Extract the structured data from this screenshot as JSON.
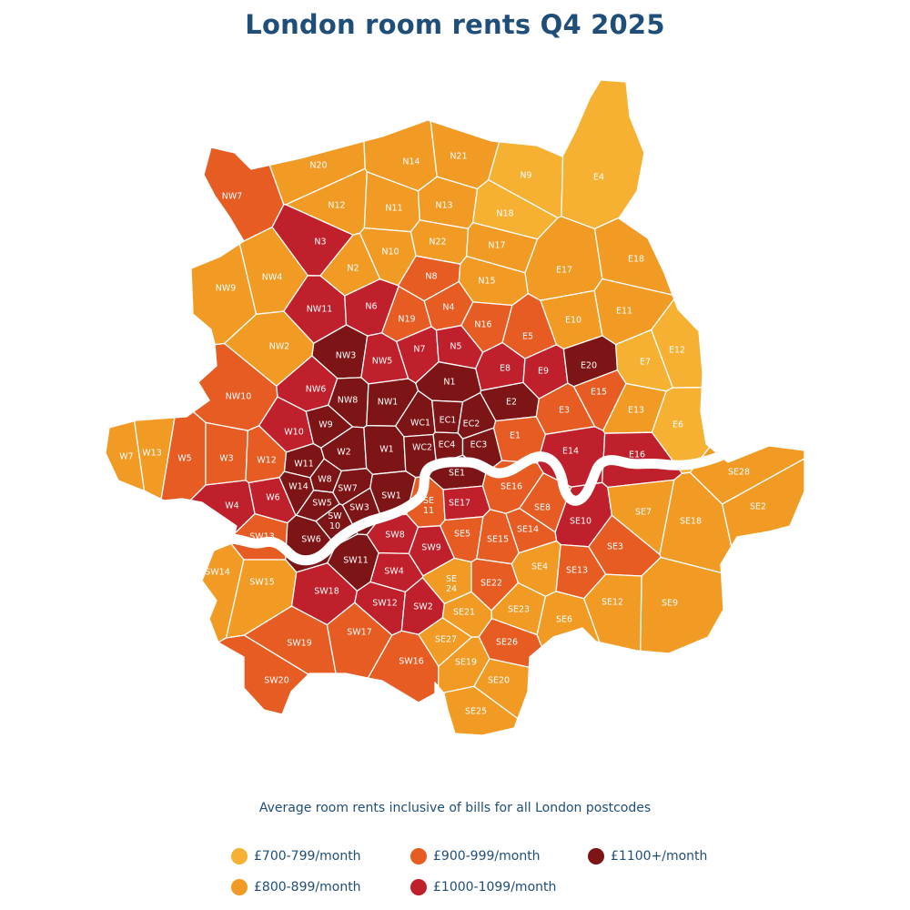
{
  "title": "London room rents Q4 2025",
  "subtitle": "Average room rents inclusive of bills for all London postcodes",
  "colors": {
    "b700": "#f6b032",
    "b800": "#f29b24",
    "b900": "#e65c23",
    "b1000": "#c0202b",
    "b1100": "#7d1416",
    "river": "#ffffff",
    "text": "#1f4e79"
  },
  "legend": [
    {
      "key": "b700",
      "label": "£700-799/month"
    },
    {
      "key": "b800",
      "label": "£800-899/month"
    },
    {
      "key": "b900",
      "label": "£900-999/month"
    },
    {
      "key": "b1000",
      "label": "£1000-1099/month"
    },
    {
      "key": "b1100",
      "label": "£1100+/month"
    }
  ],
  "postcodes": [
    {
      "code": "N20",
      "band": "b800"
    },
    {
      "code": "N14",
      "band": "b800"
    },
    {
      "code": "N21",
      "band": "b800"
    },
    {
      "code": "N9",
      "band": "b700"
    },
    {
      "code": "E4",
      "band": "b700"
    },
    {
      "code": "NW7",
      "band": "b900"
    },
    {
      "code": "N12",
      "band": "b800"
    },
    {
      "code": "N11",
      "band": "b800"
    },
    {
      "code": "N13",
      "band": "b800"
    },
    {
      "code": "N18",
      "band": "b700"
    },
    {
      "code": "N3",
      "band": "b1000"
    },
    {
      "code": "N10",
      "band": "b800"
    },
    {
      "code": "N22",
      "band": "b800"
    },
    {
      "code": "N17",
      "band": "b800"
    },
    {
      "code": "E17",
      "band": "b800"
    },
    {
      "code": "E18",
      "band": "b800"
    },
    {
      "code": "NW9",
      "band": "b800"
    },
    {
      "code": "NW4",
      "band": "b800"
    },
    {
      "code": "N2",
      "band": "b800"
    },
    {
      "code": "N8",
      "band": "b900"
    },
    {
      "code": "N15",
      "band": "b800"
    },
    {
      "code": "E11",
      "band": "b800"
    },
    {
      "code": "NW11",
      "band": "b1000"
    },
    {
      "code": "N6",
      "band": "b1000"
    },
    {
      "code": "N4",
      "band": "b900"
    },
    {
      "code": "N19",
      "band": "b900"
    },
    {
      "code": "N16",
      "band": "b900"
    },
    {
      "code": "E10",
      "band": "b800"
    },
    {
      "code": "E12",
      "band": "b700"
    },
    {
      "code": "NW3",
      "band": "b1100"
    },
    {
      "code": "N7",
      "band": "b1000"
    },
    {
      "code": "N5",
      "band": "b1000"
    },
    {
      "code": "E5",
      "band": "b900"
    },
    {
      "code": "E7",
      "band": "b700"
    },
    {
      "code": "NW2",
      "band": "b800"
    },
    {
      "code": "NW5",
      "band": "b1000"
    },
    {
      "code": "E8",
      "band": "b1000"
    },
    {
      "code": "E9",
      "band": "b1000"
    },
    {
      "code": "E20",
      "band": "b1100"
    },
    {
      "code": "NW6",
      "band": "b1000"
    },
    {
      "code": "NW8",
      "band": "b1100"
    },
    {
      "code": "NW1",
      "band": "b1100"
    },
    {
      "code": "N1",
      "band": "b1100"
    },
    {
      "code": "E2",
      "band": "b1100"
    },
    {
      "code": "E15",
      "band": "b900"
    },
    {
      "code": "NW10",
      "band": "b900"
    },
    {
      "code": "E3",
      "band": "b900"
    },
    {
      "code": "E13",
      "band": "b800"
    },
    {
      "code": "E6",
      "band": "b700"
    },
    {
      "code": "W9",
      "band": "b1100"
    },
    {
      "code": "WC1",
      "band": "b1100"
    },
    {
      "code": "EC1",
      "band": "b1100"
    },
    {
      "code": "EC2",
      "band": "b1100"
    },
    {
      "code": "W10",
      "band": "b1000"
    },
    {
      "code": "W7",
      "band": "b800"
    },
    {
      "code": "W13",
      "band": "b800"
    },
    {
      "code": "W5",
      "band": "b900"
    },
    {
      "code": "W3",
      "band": "b900"
    },
    {
      "code": "W12",
      "band": "b900"
    },
    {
      "code": "W2",
      "band": "b1100"
    },
    {
      "code": "W1",
      "band": "b1100"
    },
    {
      "code": "WC2",
      "band": "b1100"
    },
    {
      "code": "EC4",
      "band": "b1100"
    },
    {
      "code": "EC3",
      "band": "b1100"
    },
    {
      "code": "E1",
      "band": "b900"
    },
    {
      "code": "E14",
      "band": "b1000"
    },
    {
      "code": "E16",
      "band": "b1000"
    },
    {
      "code": "W11",
      "band": "b1100"
    },
    {
      "code": "W8",
      "band": "b1100"
    },
    {
      "code": "W14",
      "band": "b1100"
    },
    {
      "code": "SE1",
      "band": "b1100"
    },
    {
      "code": "SE28",
      "band": "b800"
    },
    {
      "code": "W4",
      "band": "b1000"
    },
    {
      "code": "W6",
      "band": "b1000"
    },
    {
      "code": "SW7",
      "band": "b1100"
    },
    {
      "code": "SW5",
      "band": "b1100"
    },
    {
      "code": "SW1",
      "band": "b1100"
    },
    {
      "code": "SE16",
      "band": "b900"
    },
    {
      "code": "SW3",
      "band": "b1100"
    },
    {
      "code": "SW10",
      "band": "b1100"
    },
    {
      "code": "SE11",
      "band": "b900"
    },
    {
      "code": "SE17",
      "band": "b1000"
    },
    {
      "code": "SE8",
      "band": "b900"
    },
    {
      "code": "SE2",
      "band": "b800"
    },
    {
      "code": "SE7",
      "band": "b800"
    },
    {
      "code": "SE18",
      "band": "b800"
    },
    {
      "code": "SE10",
      "band": "b1000"
    },
    {
      "code": "SE14",
      "band": "b900"
    },
    {
      "code": "SW13",
      "band": "b900"
    },
    {
      "code": "SW6",
      "band": "b1100"
    },
    {
      "code": "SE5",
      "band": "b900"
    },
    {
      "code": "SW8",
      "band": "b1000"
    },
    {
      "code": "SE15",
      "band": "b900"
    },
    {
      "code": "SE3",
      "band": "b900"
    },
    {
      "code": "SW14",
      "band": "b800"
    },
    {
      "code": "SW11",
      "band": "b1100"
    },
    {
      "code": "SW9",
      "band": "b1000"
    },
    {
      "code": "SE4",
      "band": "b800"
    },
    {
      "code": "SE13",
      "band": "b900"
    },
    {
      "code": "SW15",
      "band": "b800"
    },
    {
      "code": "SW4",
      "band": "b1000"
    },
    {
      "code": "SE24",
      "band": "b800"
    },
    {
      "code": "SE22",
      "band": "b900"
    },
    {
      "code": "SE9",
      "band": "b800"
    },
    {
      "code": "SW18",
      "band": "b1000"
    },
    {
      "code": "SE12",
      "band": "b800"
    },
    {
      "code": "SW12",
      "band": "b1000"
    },
    {
      "code": "SW2",
      "band": "b1000"
    },
    {
      "code": "SE21",
      "band": "b800"
    },
    {
      "code": "SE23",
      "band": "b800"
    },
    {
      "code": "SE6",
      "band": "b800"
    },
    {
      "code": "SW19",
      "band": "b900"
    },
    {
      "code": "SW17",
      "band": "b900"
    },
    {
      "code": "SE27",
      "band": "b800"
    },
    {
      "code": "SE26",
      "band": "b900"
    },
    {
      "code": "SW16",
      "band": "b900"
    },
    {
      "code": "SE19",
      "band": "b800"
    },
    {
      "code": "SE20",
      "band": "b800"
    },
    {
      "code": "SW20",
      "band": "b900"
    },
    {
      "code": "SE25",
      "band": "b800"
    }
  ]
}
